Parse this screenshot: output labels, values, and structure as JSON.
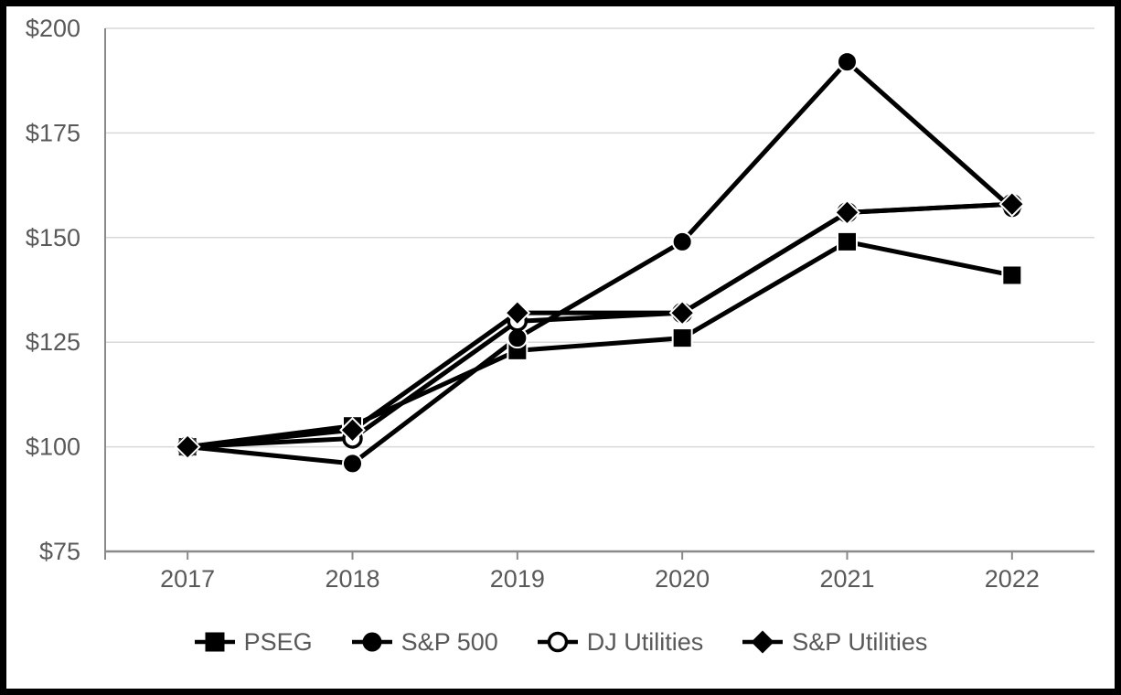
{
  "chart_data": {
    "type": "line",
    "title": "",
    "categories": [
      "2017",
      "2018",
      "2019",
      "2020",
      "2021",
      "2022"
    ],
    "series": [
      {
        "id": "pseg",
        "name": "PSEG",
        "marker": "filled-square",
        "values": [
          100,
          105,
          123,
          126,
          149,
          141
        ]
      },
      {
        "id": "sp500",
        "name": "S&P 500",
        "marker": "filled-circle",
        "values": [
          100,
          96,
          126,
          149,
          192,
          157
        ]
      },
      {
        "id": "dj-utilities",
        "name": "DJ Utilities",
        "marker": "open-circle",
        "values": [
          100,
          102,
          130,
          132,
          156,
          158
        ]
      },
      {
        "id": "sp-utilities",
        "name": "S&P Utilities",
        "marker": "filled-diamond",
        "values": [
          100,
          104,
          132,
          132,
          156,
          158
        ]
      }
    ],
    "ylim": [
      75,
      200
    ],
    "y_ticks": [
      75,
      100,
      125,
      150,
      175,
      200
    ],
    "y_tick_labels": [
      "$75",
      "$100",
      "$125",
      "$150",
      "$175",
      "$200"
    ],
    "xlabel": "",
    "ylabel": "",
    "grid": "horizontal",
    "legend_position": "bottom"
  },
  "colors": {
    "line": "#000000",
    "grid": "#D9D9D9",
    "axis": "#8A8A8A",
    "text": "#595959",
    "marker_rim": "#FFFFFF",
    "background": "#FFFFFF",
    "frame_border": "#000000"
  }
}
